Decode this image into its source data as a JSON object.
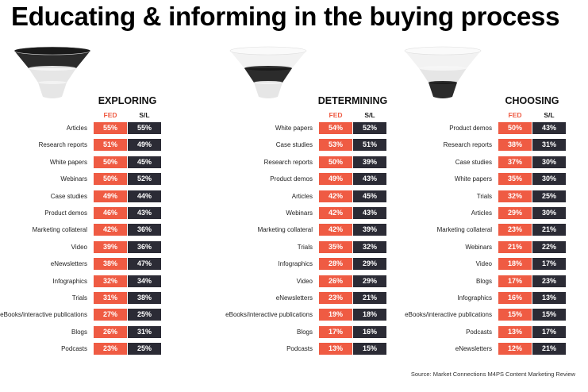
{
  "title": "Educating & informing in the buying process",
  "source": "Source: Market Connections M4PS Content Marketing Review",
  "colors": {
    "fed": "#ef5b43",
    "sl": "#2b2b35"
  },
  "chart_data": [
    {
      "type": "table",
      "title": "EXPLORING",
      "columns": [
        "FED",
        "S/L"
      ],
      "rows": [
        {
          "label": "Articles",
          "fed": "55%",
          "sl": "55%"
        },
        {
          "label": "Research reports",
          "fed": "51%",
          "sl": "49%"
        },
        {
          "label": "White papers",
          "fed": "50%",
          "sl": "45%"
        },
        {
          "label": "Webinars",
          "fed": "50%",
          "sl": "52%"
        },
        {
          "label": "Case studies",
          "fed": "49%",
          "sl": "44%"
        },
        {
          "label": "Product demos",
          "fed": "46%",
          "sl": "43%"
        },
        {
          "label": "Marketing collateral",
          "fed": "42%",
          "sl": "36%"
        },
        {
          "label": "Video",
          "fed": "39%",
          "sl": "36%"
        },
        {
          "label": "eNewsletters",
          "fed": "38%",
          "sl": "47%"
        },
        {
          "label": "Infographics",
          "fed": "32%",
          "sl": "34%"
        },
        {
          "label": "Trials",
          "fed": "31%",
          "sl": "38%"
        },
        {
          "label": "eBooks/interactive publications",
          "fed": "27%",
          "sl": "25%"
        },
        {
          "label": "Blogs",
          "fed": "26%",
          "sl": "31%"
        },
        {
          "label": "Podcasts",
          "fed": "23%",
          "sl": "25%"
        }
      ]
    },
    {
      "type": "table",
      "title": "DETERMINING",
      "columns": [
        "FED",
        "S/L"
      ],
      "rows": [
        {
          "label": "White papers",
          "fed": "54%",
          "sl": "52%"
        },
        {
          "label": "Case studies",
          "fed": "53%",
          "sl": "51%"
        },
        {
          "label": "Research reports",
          "fed": "50%",
          "sl": "39%"
        },
        {
          "label": "Product demos",
          "fed": "49%",
          "sl": "43%"
        },
        {
          "label": "Articles",
          "fed": "42%",
          "sl": "45%"
        },
        {
          "label": "Webinars",
          "fed": "42%",
          "sl": "43%"
        },
        {
          "label": "Marketing collateral",
          "fed": "42%",
          "sl": "39%"
        },
        {
          "label": "Trials",
          "fed": "35%",
          "sl": "32%"
        },
        {
          "label": "Infographics",
          "fed": "28%",
          "sl": "29%"
        },
        {
          "label": "Video",
          "fed": "26%",
          "sl": "29%"
        },
        {
          "label": "eNewsletters",
          "fed": "23%",
          "sl": "21%"
        },
        {
          "label": "eBooks/interactive publications",
          "fed": "19%",
          "sl": "18%"
        },
        {
          "label": "Blogs",
          "fed": "17%",
          "sl": "16%"
        },
        {
          "label": "Podcasts",
          "fed": "13%",
          "sl": "15%"
        }
      ]
    },
    {
      "type": "table",
      "title": "CHOOSING",
      "columns": [
        "FED",
        "S/L"
      ],
      "rows": [
        {
          "label": "Product demos",
          "fed": "50%",
          "sl": "43%"
        },
        {
          "label": "Research reports",
          "fed": "38%",
          "sl": "31%"
        },
        {
          "label": "Case studies",
          "fed": "37%",
          "sl": "30%"
        },
        {
          "label": "White papers",
          "fed": "35%",
          "sl": "30%"
        },
        {
          "label": "Trials",
          "fed": "32%",
          "sl": "25%"
        },
        {
          "label": "Articles",
          "fed": "29%",
          "sl": "30%"
        },
        {
          "label": "Marketing collateral",
          "fed": "23%",
          "sl": "21%"
        },
        {
          "label": "Webinars",
          "fed": "21%",
          "sl": "22%"
        },
        {
          "label": "Video",
          "fed": "18%",
          "sl": "17%"
        },
        {
          "label": "Blogs",
          "fed": "17%",
          "sl": "23%"
        },
        {
          "label": "Infographics",
          "fed": "16%",
          "sl": "13%"
        },
        {
          "label": "eBooks/interactive publications",
          "fed": "15%",
          "sl": "15%"
        },
        {
          "label": "Podcasts",
          "fed": "13%",
          "sl": "17%"
        },
        {
          "label": "eNewsletters",
          "fed": "12%",
          "sl": "21%"
        }
      ]
    }
  ]
}
